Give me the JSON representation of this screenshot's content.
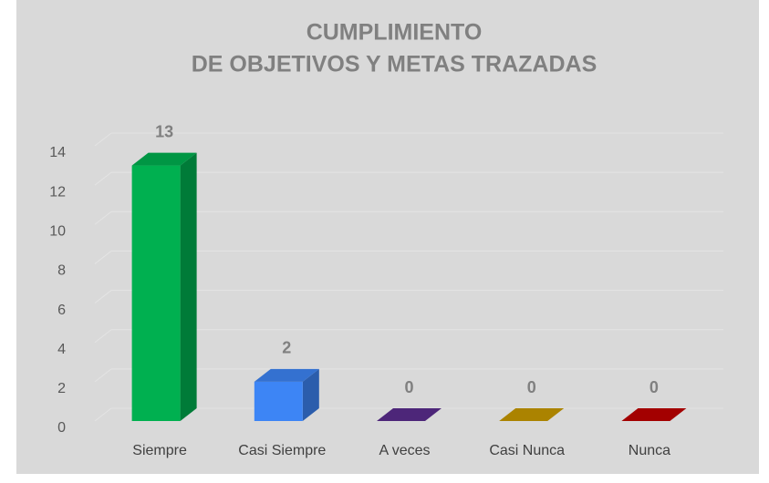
{
  "chart_data": {
    "type": "bar3d",
    "title": [
      "CUMPLIMIENTO",
      "DE OBJETIVOS Y METAS TRAZADAS"
    ],
    "categories": [
      "Siempre",
      "Casi Siempre",
      "A veces",
      "Casi Nunca",
      "Nunca"
    ],
    "values": [
      13,
      2,
      0,
      0,
      0
    ],
    "colors": [
      "#00b050",
      "#3d85f5",
      "#5b2d8e",
      "#c99a00",
      "#c00000"
    ],
    "ylim": [
      0,
      14
    ],
    "yticks": [
      0,
      2,
      4,
      6,
      8,
      10,
      12,
      14
    ],
    "grid": true
  }
}
